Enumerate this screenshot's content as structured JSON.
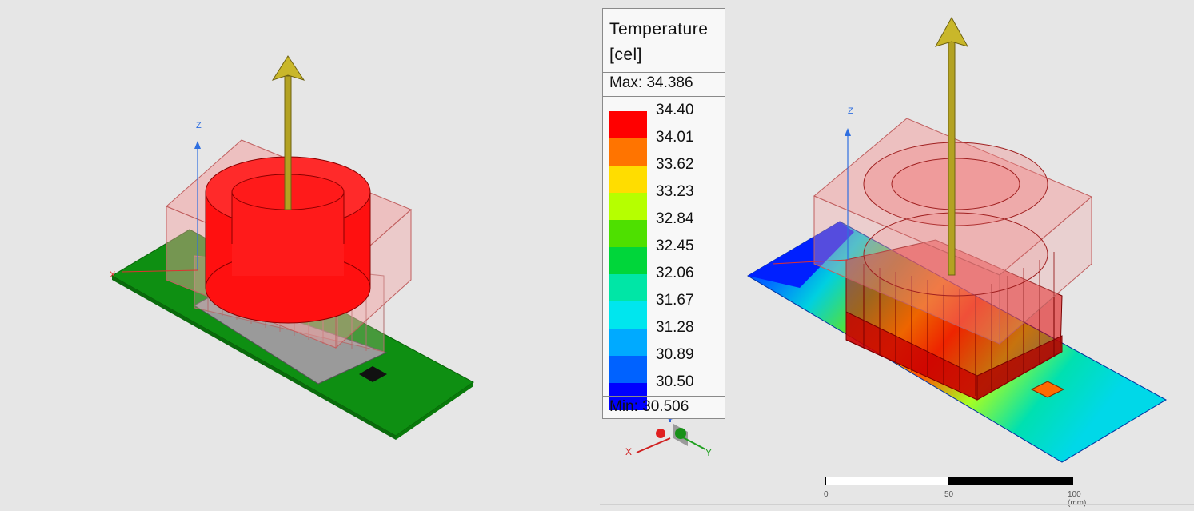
{
  "legend": {
    "title_line1": "Temperature",
    "title_line2": "[cel]",
    "max_label": "Max: 34.386",
    "min_label": "Min: 30.506",
    "ticks": [
      "34.40",
      "34.01",
      "33.62",
      "33.23",
      "32.84",
      "32.45",
      "32.06",
      "31.67",
      "31.28",
      "30.89",
      "30.50"
    ],
    "colors": [
      "#ff0000",
      "#ff7400",
      "#ffdd00",
      "#b6ff00",
      "#4ee000",
      "#00d63a",
      "#00e6a6",
      "#00e6ee",
      "#00aaff",
      "#0062ff",
      "#0000ff"
    ]
  },
  "axes": {
    "z": "Z",
    "x": "X",
    "y": "Y"
  },
  "scalebar": {
    "zero": "0",
    "mid": "50",
    "end": "100 (mm)"
  },
  "colors": {
    "board": "#0e8f12",
    "housing": "#f3a0a0",
    "arrow": "#b3a222",
    "hot": "#ff1010"
  }
}
